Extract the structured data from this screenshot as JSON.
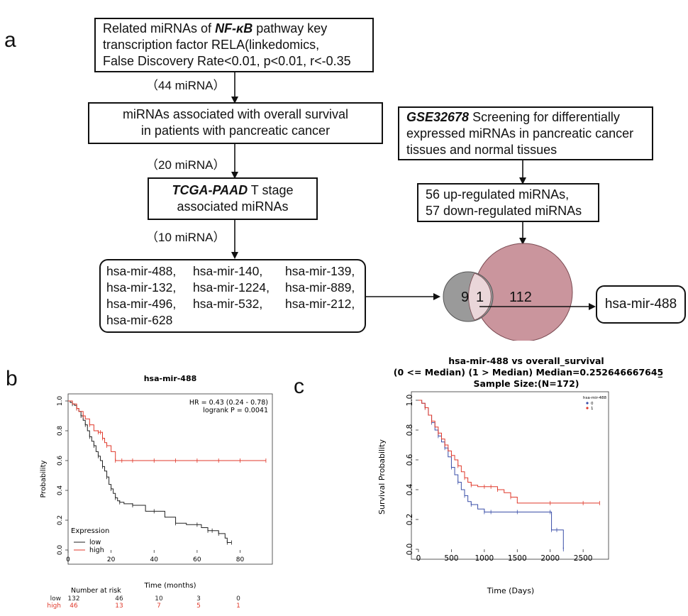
{
  "panel_a": {
    "letter": "a",
    "box1": {
      "l1_a": "Related miRNAs of ",
      "l1_b": "NF-κB",
      "l1_c": " pathway key",
      "l2": "transcription factor RELA(linkedomics,",
      "l3": "False Discovery Rate<0.01, p<0.01, r<-0.35"
    },
    "count1": "（44 miRNA）",
    "box2": {
      "l1": "miRNAs associated with overall survival",
      "l2": "in patients with  pancreatic cancer"
    },
    "count2": "（20 miRNA）",
    "box3": {
      "l1_a": "TCGA-PAAD",
      "l1_b": " T stage",
      "l2": "associated miRNAs"
    },
    "count3": "（10 miRNA）",
    "mirna_list": [
      [
        "hsa-mir-488,",
        "hsa-mir-140,",
        "hsa-mir-139,"
      ],
      [
        "hsa-mir-132,",
        "hsa-mir-1224,",
        "hsa-mir-889,"
      ],
      [
        "hsa-mir-496,",
        "hsa-mir-532,",
        "hsa-mir-212,"
      ],
      [
        "hsa-mir-628"
      ]
    ],
    "geo_box": {
      "l1_a": "GSE32678",
      "l1_b": " Screening for differentially",
      "l2": "expressed miRNAs in pancreatic cancer",
      "l3": "tissues and normal tissues"
    },
    "reg_box": {
      "l1": "56 up-regulated miRNAs,",
      "l2": "57 down-regulated miRNAs"
    },
    "venn": {
      "left": "9",
      "overlap": "1",
      "right": "112",
      "left_color": "#9a9a9a",
      "right_color": "#c48a92"
    },
    "result": "hsa-mir-488"
  },
  "panel_b": {
    "letter": "b",
    "title": "hsa-mir-488",
    "hr_text": "HR = 0.43 (0.24 - 0.78)",
    "logrank_text": "logrank P = 0.0041",
    "xlabel": "Time (months)",
    "ylabel": "Probability",
    "xticks": [
      "0",
      "20",
      "40",
      "60",
      "80"
    ],
    "yticks": [
      "0.0",
      "0.2",
      "0.4",
      "0.6",
      "0.8",
      "1.0"
    ],
    "legend_title": "Expression",
    "legend": [
      {
        "name": "low",
        "color": "#222222"
      },
      {
        "name": "high",
        "color": "#e0392b"
      }
    ],
    "risk_title": "Number at risk",
    "risk_rows": [
      {
        "label": "low",
        "values": [
          "132",
          "46",
          "10",
          "3",
          "0"
        ],
        "color": "#222222"
      },
      {
        "label": "high",
        "values": [
          "46",
          "13",
          "7",
          "5",
          "1"
        ],
        "color": "#e0392b"
      }
    ]
  },
  "panel_c": {
    "letter": "c",
    "title1": "hsa-mir-488 vs overall_survival",
    "title2": "(0 <= Median) (1 > Median) Median=0.252646667645̲",
    "title3": "Sample Size:(N=172)",
    "xlabel": "Time (Days)",
    "ylabel": "Survival Probability",
    "xticks": [
      "0",
      "500",
      "1000",
      "1500",
      "2000",
      "2500"
    ],
    "yticks": [
      "0.0",
      "0.2",
      "0.4",
      "0.6",
      "0.8",
      "1.0"
    ],
    "legend_title": "hsa-mir-488",
    "legend": [
      {
        "name": "0",
        "color": "#3a4fa8"
      },
      {
        "name": "1",
        "color": "#e0392b"
      }
    ]
  },
  "chart_data": [
    {
      "type": "line",
      "title": "hsa-mir-488",
      "xlabel": "Time (months)",
      "ylabel": "Probability",
      "xlim": [
        0,
        95
      ],
      "ylim": [
        0,
        1
      ],
      "series": [
        {
          "name": "low",
          "color": "#222222",
          "x": [
            0,
            1,
            2,
            3,
            4,
            5,
            6,
            7,
            8,
            9,
            10,
            11,
            12,
            13,
            14,
            15,
            16,
            17,
            18,
            19,
            20,
            21,
            22,
            23,
            24,
            26,
            30,
            36,
            40,
            45,
            50,
            55,
            60,
            62,
            65,
            67,
            70,
            73,
            74,
            76
          ],
          "y": [
            1.0,
            0.99,
            0.98,
            0.97,
            0.95,
            0.93,
            0.9,
            0.87,
            0.84,
            0.8,
            0.76,
            0.73,
            0.7,
            0.66,
            0.63,
            0.6,
            0.56,
            0.53,
            0.49,
            0.44,
            0.41,
            0.38,
            0.35,
            0.33,
            0.32,
            0.31,
            0.3,
            0.26,
            0.26,
            0.22,
            0.18,
            0.17,
            0.17,
            0.15,
            0.13,
            0.13,
            0.11,
            0.08,
            0.05,
            0.05
          ]
        },
        {
          "name": "high",
          "color": "#e0392b",
          "x": [
            0,
            2,
            4,
            5,
            7,
            8,
            10,
            12,
            14,
            15,
            16,
            17,
            18,
            20,
            22,
            25,
            30,
            40,
            50,
            60,
            70,
            80,
            92
          ],
          "y": [
            1.0,
            0.98,
            0.95,
            0.93,
            0.9,
            0.88,
            0.84,
            0.8,
            0.79,
            0.79,
            0.75,
            0.72,
            0.7,
            0.66,
            0.6,
            0.6,
            0.6,
            0.6,
            0.6,
            0.6,
            0.6,
            0.6,
            0.6
          ]
        }
      ]
    },
    {
      "type": "line",
      "title": "hsa-mir-488 vs overall_survival",
      "xlabel": "Time (Days)",
      "ylabel": "Survival Probability",
      "xlim": [
        0,
        2800
      ],
      "ylim": [
        0,
        1
      ],
      "series": [
        {
          "name": "0",
          "color": "#3a4fa8",
          "x": [
            0,
            50,
            100,
            150,
            200,
            250,
            300,
            350,
            400,
            450,
            500,
            550,
            600,
            650,
            700,
            750,
            800,
            900,
            1000,
            1100,
            1500,
            2000,
            2020,
            2100,
            2200
          ],
          "y": [
            1.0,
            0.98,
            0.95,
            0.9,
            0.85,
            0.8,
            0.76,
            0.72,
            0.68,
            0.62,
            0.55,
            0.5,
            0.45,
            0.4,
            0.36,
            0.32,
            0.3,
            0.27,
            0.25,
            0.25,
            0.25,
            0.25,
            0.13,
            0.13,
            0.0
          ]
        },
        {
          "name": "1",
          "color": "#e0392b",
          "x": [
            0,
            50,
            100,
            150,
            200,
            250,
            300,
            350,
            400,
            450,
            500,
            550,
            600,
            650,
            700,
            750,
            800,
            900,
            1000,
            1100,
            1200,
            1300,
            1400,
            1500,
            2000,
            2500,
            2750
          ],
          "y": [
            1.0,
            0.98,
            0.95,
            0.9,
            0.86,
            0.82,
            0.78,
            0.74,
            0.7,
            0.66,
            0.63,
            0.6,
            0.56,
            0.52,
            0.48,
            0.45,
            0.43,
            0.42,
            0.42,
            0.42,
            0.4,
            0.38,
            0.35,
            0.31,
            0.31,
            0.31,
            0.31
          ]
        }
      ]
    }
  ]
}
